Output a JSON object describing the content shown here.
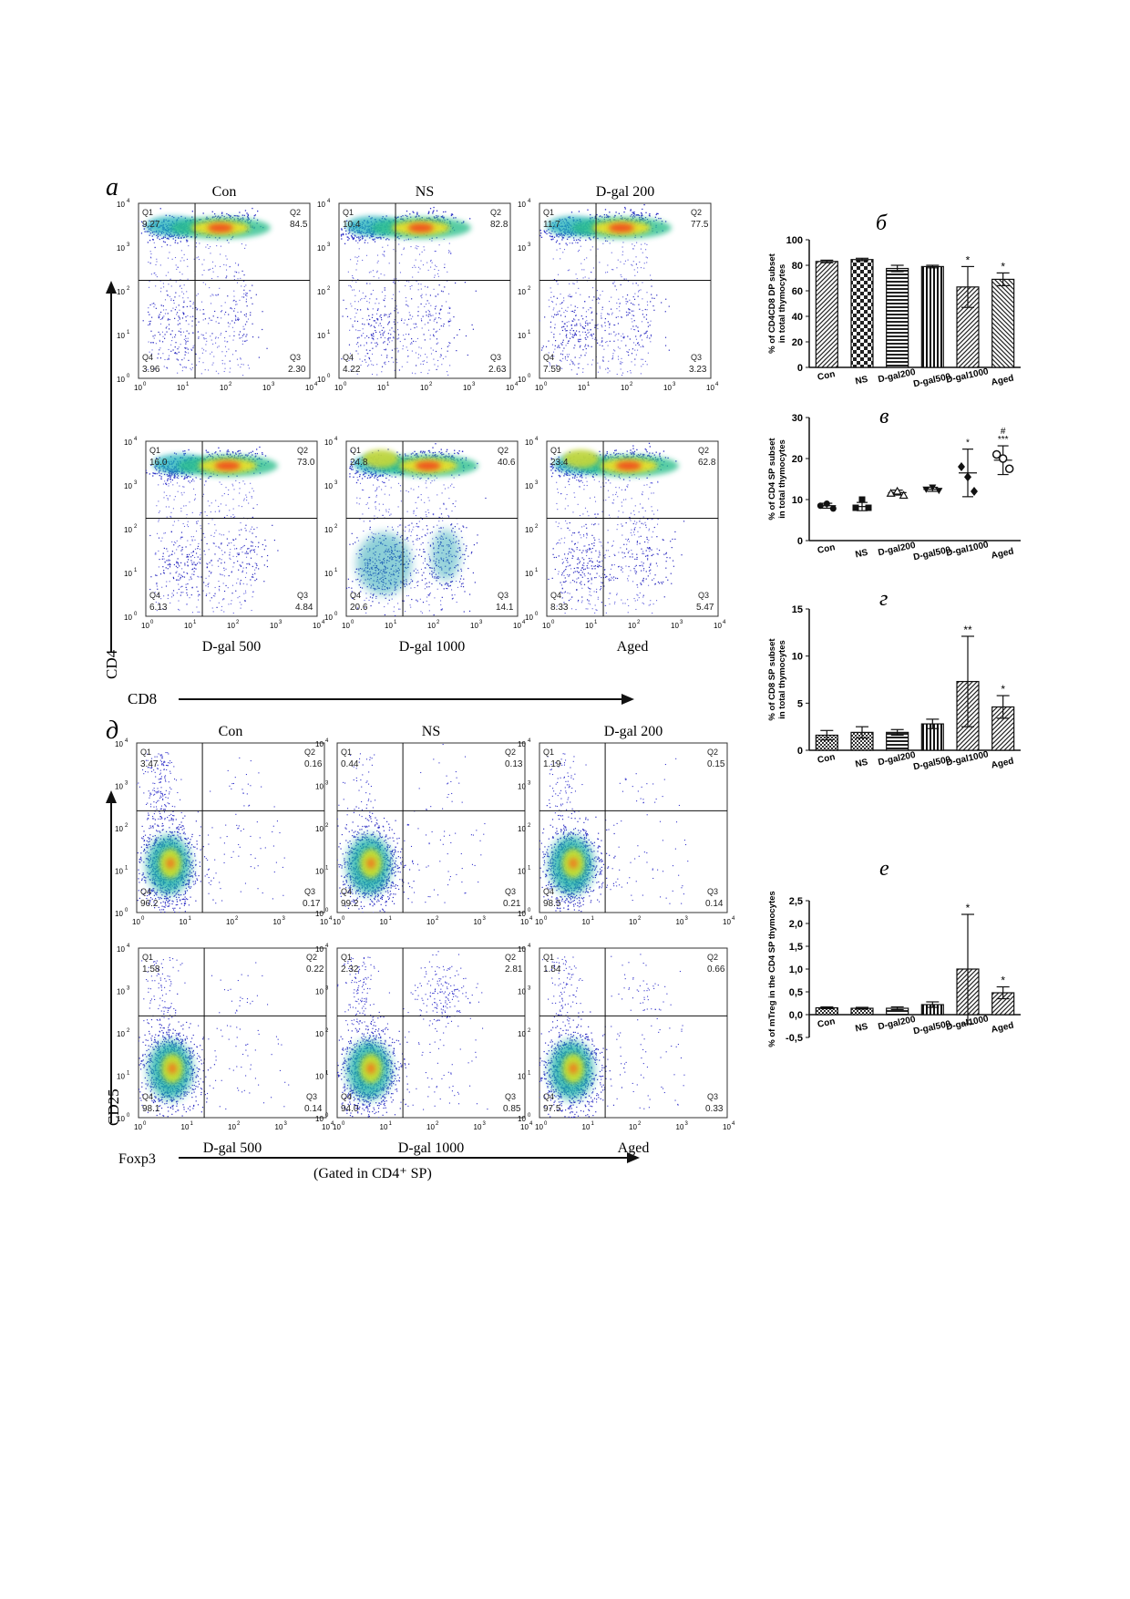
{
  "panel_letters": {
    "a": "а",
    "b": "б",
    "v": "в",
    "g": "г",
    "d": "д",
    "e": "е"
  },
  "flow_top": {
    "x_axis_label": "CD8",
    "y_axis_label": "CD4",
    "decade_ticks": [
      "10",
      "10",
      "10",
      "10",
      "10"
    ],
    "decade_exps": [
      "0",
      "1",
      "2",
      "3",
      "4"
    ],
    "plots": [
      {
        "title": "Con",
        "title_pos": "top",
        "q": [
          "Q1",
          "Q2",
          "Q3",
          "Q4"
        ],
        "v": [
          "9.27",
          "84.5",
          "2.30",
          "3.96"
        ]
      },
      {
        "title": "NS",
        "title_pos": "top",
        "q": [
          "Q1",
          "Q2",
          "Q3",
          "Q4"
        ],
        "v": [
          "10.4",
          "82.8",
          "2.63",
          "4.22"
        ]
      },
      {
        "title": "D-gal 200",
        "title_pos": "top",
        "q": [
          "Q1",
          "Q2",
          "Q3",
          "Q4"
        ],
        "v": [
          "11.7",
          "77.5",
          "3.23",
          "7.59"
        ]
      },
      {
        "title": "D-gal 500",
        "title_pos": "bottom",
        "q": [
          "Q1",
          "Q2",
          "Q3",
          "Q4"
        ],
        "v": [
          "16.0",
          "73.0",
          "4.84",
          "6.13"
        ]
      },
      {
        "title": "D-gal 1000",
        "title_pos": "bottom",
        "q": [
          "Q1",
          "Q2",
          "Q3",
          "Q4"
        ],
        "v": [
          "24.8",
          "40.6",
          "14.1",
          "20.6"
        ]
      },
      {
        "title": "Aged",
        "title_pos": "bottom",
        "q": [
          "Q1",
          "Q2",
          "Q3",
          "Q4"
        ],
        "v": [
          "23.4",
          "62.8",
          "5.47",
          "8.33"
        ]
      }
    ]
  },
  "flow_bottom": {
    "x_axis_label": "Foxp3",
    "y_axis_label": "CD25",
    "gate_note": "(Gated in CD4⁺ SP)",
    "plots": [
      {
        "title": "Con",
        "title_pos": "top",
        "q": [
          "Q1",
          "Q2",
          "Q3",
          "Q4"
        ],
        "v": [
          "3.47",
          "0.16",
          "0.17",
          "96.2"
        ]
      },
      {
        "title": "NS",
        "title_pos": "top",
        "q": [
          "Q1",
          "Q2",
          "Q3",
          "Q4"
        ],
        "v": [
          "0.44",
          "0.13",
          "0.21",
          "99.2"
        ]
      },
      {
        "title": "D-gal 200",
        "title_pos": "top",
        "q": [
          "Q1",
          "Q2",
          "Q3",
          "Q4"
        ],
        "v": [
          "1.19",
          "0.15",
          "0.14",
          "98.5"
        ]
      },
      {
        "title": "D-gal 500",
        "title_pos": "bottom",
        "q": [
          "Q1",
          "Q2",
          "Q3",
          "Q4"
        ],
        "v": [
          "1.58",
          "0.22",
          "0.14",
          "98.1"
        ]
      },
      {
        "title": "D-gal 1000",
        "title_pos": "bottom",
        "q": [
          "Q1",
          "Q2",
          "Q3",
          "Q4"
        ],
        "v": [
          "2.32",
          "2.81",
          "0.85",
          "94.0"
        ]
      },
      {
        "title": "Aged",
        "title_pos": "bottom",
        "q": [
          "Q1",
          "Q2",
          "Q3",
          "Q4"
        ],
        "v": [
          "1.54",
          "0.66",
          "0.33",
          "97.5"
        ]
      }
    ]
  },
  "chart_data": [
    {
      "panel": "б",
      "type": "bar",
      "categories": [
        "Con",
        "NS",
        "D-gal200",
        "D-gal500",
        "D-gal1000",
        "Aged"
      ],
      "values": [
        83,
        84.5,
        77.5,
        79,
        63,
        69
      ],
      "errors": [
        1,
        1,
        2.5,
        1,
        16,
        5
      ],
      "significance": [
        "",
        "",
        "",
        "",
        "*",
        "*"
      ],
      "patterns": [
        "diag-left",
        "checker",
        "hstripe",
        "vstripe",
        "diag-left",
        "diag-right"
      ],
      "ylabel_lines": [
        "% of CD4CD8 DP subset",
        "in total thymocytes"
      ],
      "ylim": [
        0,
        100
      ],
      "yticks": [
        "0",
        "20",
        "40",
        "60",
        "80",
        "100"
      ]
    },
    {
      "panel": "в",
      "type": "scatter",
      "categories": [
        "Con",
        "NS",
        "D-gal200",
        "D-gal500",
        "D-gal1000",
        "Aged"
      ],
      "points": [
        [
          8.5,
          9,
          7.8
        ],
        [
          8,
          10,
          8
        ],
        [
          11.5,
          12,
          11
        ],
        [
          12.5,
          13,
          12.2
        ],
        [
          18,
          15.5,
          12
        ],
        [
          21,
          20,
          17.5
        ]
      ],
      "means": [
        8.5,
        8.3,
        11.7,
        12.5,
        16.5,
        19.6
      ],
      "sd": [
        0.6,
        1.0,
        0.6,
        0.5,
        5.8,
        3.5
      ],
      "markers": [
        "circle",
        "square",
        "triangle",
        "triangle-down",
        "diamond",
        "open-circle"
      ],
      "significance": [
        "",
        "",
        "",
        "",
        "*",
        "#\n***"
      ],
      "ylabel_lines": [
        "% of CD4 SP subset",
        "in total thymocytes"
      ],
      "ylim": [
        0,
        30
      ],
      "yticks": [
        "0",
        "10",
        "20",
        "30"
      ]
    },
    {
      "panel": "г",
      "type": "bar",
      "categories": [
        "Con",
        "NS",
        "D-gal200",
        "D-gal500",
        "D-gal1000",
        "Aged"
      ],
      "values": [
        1.6,
        1.9,
        1.9,
        2.8,
        7.3,
        4.6
      ],
      "errors": [
        0.5,
        0.6,
        0.3,
        0.5,
        4.8,
        1.2
      ],
      "significance": [
        "",
        "",
        "",
        "",
        "**",
        "*"
      ],
      "patterns": [
        "checker-fine",
        "checker-fine",
        "hstripe",
        "vstripe",
        "diag-left",
        "diag-left"
      ],
      "ylabel_lines": [
        "% of CD8 SP subset",
        "in total thymocytes"
      ],
      "ylim": [
        0,
        15
      ],
      "yticks": [
        "0",
        "5",
        "10",
        "15"
      ]
    },
    {
      "panel": "е",
      "type": "bar",
      "categories": [
        "Con",
        "NS",
        "D-gal200",
        "D-gal500",
        "D-gal1000",
        "Aged"
      ],
      "values": [
        0.15,
        0.14,
        0.14,
        0.22,
        1.0,
        0.48
      ],
      "errors": [
        0.02,
        0.02,
        0.03,
        0.06,
        1.2,
        0.13
      ],
      "significance": [
        "",
        "",
        "",
        "",
        "*",
        "*"
      ],
      "patterns": [
        "checker-fine",
        "checker-fine",
        "hstripe",
        "vstripe",
        "diag-left",
        "diag-left"
      ],
      "ylabel_lines": [
        "% of mTreg in the CD4 SP thymocytes"
      ],
      "ylim": [
        -0.5,
        2.5
      ],
      "yticks": [
        "-0,5",
        "0,0",
        "0,5",
        "1,0",
        "1,5",
        "2,0",
        "2,5"
      ]
    }
  ]
}
